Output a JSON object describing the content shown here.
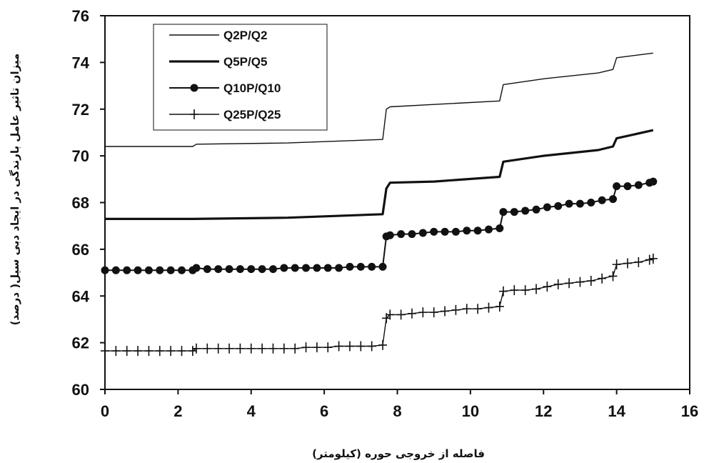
{
  "chart_data": {
    "type": "line",
    "xlabel": "فاصله از خروجی حوره (کیلومتر)",
    "ylabel": "میزان تاثیر عامل بارندگی در ایجاد دبی سیل( درصد)",
    "xlim": [
      0,
      16
    ],
    "ylim": [
      60,
      76
    ],
    "xticks": [
      "0",
      "2",
      "4",
      "6",
      "8",
      "10",
      "12",
      "14",
      "16"
    ],
    "yticks": [
      "60",
      "62",
      "64",
      "66",
      "68",
      "70",
      "72",
      "74",
      "76"
    ],
    "grid": false,
    "legend_position": "top-left",
    "series": [
      {
        "name": "Q2P/Q2",
        "marker": "none",
        "line_weight": "thin",
        "x": [
          0,
          2.4,
          2.5,
          5.0,
          7.6,
          7.7,
          7.8,
          9.0,
          10.8,
          10.9,
          12.0,
          13.5,
          13.9,
          14.0,
          15.0
        ],
        "y": [
          70.4,
          70.4,
          70.5,
          70.55,
          70.7,
          72.0,
          72.1,
          72.2,
          72.35,
          73.05,
          73.3,
          73.55,
          73.7,
          74.2,
          74.4
        ]
      },
      {
        "name": "Q5P/Q5",
        "marker": "none",
        "line_weight": "thick",
        "x": [
          0,
          2.4,
          5.0,
          7.6,
          7.7,
          7.8,
          9.0,
          10.8,
          10.9,
          12.0,
          13.5,
          13.9,
          14.0,
          15.0
        ],
        "y": [
          67.3,
          67.3,
          67.35,
          67.5,
          68.6,
          68.85,
          68.9,
          69.1,
          69.75,
          70.0,
          70.25,
          70.4,
          70.75,
          71.1
        ]
      },
      {
        "name": "Q10P/Q10",
        "marker": "circle",
        "line_weight": "medium",
        "x": [
          0,
          0.3,
          0.6,
          0.9,
          1.2,
          1.5,
          1.8,
          2.1,
          2.4,
          2.5,
          2.8,
          3.1,
          3.4,
          3.7,
          4.0,
          4.3,
          4.6,
          4.9,
          5.2,
          5.5,
          5.8,
          6.1,
          6.4,
          6.7,
          7.0,
          7.3,
          7.6,
          7.7,
          7.8,
          8.1,
          8.4,
          8.7,
          9.0,
          9.3,
          9.6,
          9.9,
          10.2,
          10.5,
          10.8,
          10.9,
          11.2,
          11.5,
          11.8,
          12.1,
          12.4,
          12.7,
          13.0,
          13.3,
          13.6,
          13.9,
          14.0,
          14.3,
          14.6,
          14.9,
          15.0
        ],
        "y": [
          65.1,
          65.1,
          65.1,
          65.1,
          65.1,
          65.1,
          65.1,
          65.1,
          65.1,
          65.2,
          65.15,
          65.15,
          65.15,
          65.15,
          65.15,
          65.15,
          65.15,
          65.2,
          65.2,
          65.2,
          65.2,
          65.2,
          65.2,
          65.25,
          65.25,
          65.25,
          65.25,
          66.55,
          66.6,
          66.65,
          66.65,
          66.7,
          66.75,
          66.75,
          66.75,
          66.8,
          66.8,
          66.85,
          66.9,
          67.6,
          67.6,
          67.65,
          67.7,
          67.8,
          67.85,
          67.95,
          67.95,
          68.0,
          68.1,
          68.15,
          68.7,
          68.7,
          68.75,
          68.85,
          68.9
        ]
      },
      {
        "name": "Q25P/Q25",
        "marker": "plus",
        "line_weight": "thin",
        "x": [
          0,
          0.3,
          0.6,
          0.9,
          1.2,
          1.5,
          1.8,
          2.1,
          2.4,
          2.5,
          2.8,
          3.1,
          3.4,
          3.7,
          4.0,
          4.3,
          4.6,
          4.9,
          5.2,
          5.5,
          5.8,
          6.1,
          6.4,
          6.7,
          7.0,
          7.3,
          7.6,
          7.7,
          7.8,
          8.1,
          8.4,
          8.7,
          9.0,
          9.3,
          9.6,
          9.9,
          10.2,
          10.5,
          10.8,
          10.9,
          11.2,
          11.5,
          11.8,
          12.1,
          12.4,
          12.7,
          13.0,
          13.3,
          13.6,
          13.9,
          14.0,
          14.3,
          14.6,
          14.9,
          15.0
        ],
        "y": [
          61.65,
          61.65,
          61.65,
          61.65,
          61.65,
          61.65,
          61.65,
          61.65,
          61.65,
          61.75,
          61.75,
          61.75,
          61.75,
          61.75,
          61.75,
          61.75,
          61.75,
          61.75,
          61.75,
          61.8,
          61.8,
          61.8,
          61.85,
          61.85,
          61.85,
          61.85,
          61.9,
          63.05,
          63.2,
          63.2,
          63.25,
          63.3,
          63.3,
          63.35,
          63.4,
          63.45,
          63.45,
          63.5,
          63.55,
          64.2,
          64.25,
          64.25,
          64.3,
          64.4,
          64.5,
          64.55,
          64.6,
          64.65,
          64.75,
          64.85,
          65.35,
          65.4,
          65.45,
          65.55,
          65.6
        ]
      }
    ]
  }
}
